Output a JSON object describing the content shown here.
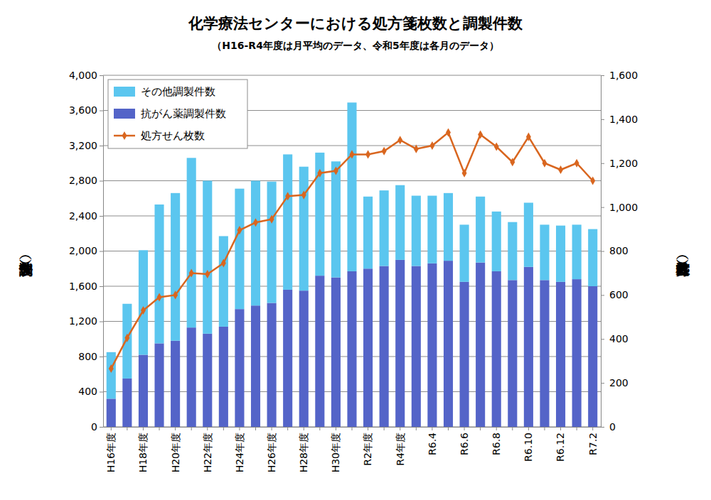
{
  "chart_data": {
    "type": "bar",
    "title": "化学療法センターにおける処方箋枚数と調製件数",
    "subtitle": "（H16-R4年度は月平均のデータ、令和5年度は各月のデータ）",
    "y_label": "調製件数（件）",
    "y2_label": "処方箋枚数（枚）",
    "stacked": true,
    "grid": true,
    "legend": "upper left",
    "categories": [
      "H16年度",
      null,
      "H18年度",
      null,
      "H20年度",
      null,
      "H22年度",
      null,
      "H24年度",
      null,
      "H26年度",
      null,
      "H28年度",
      null,
      "H30年度",
      null,
      "R2年度",
      null,
      "R4年度",
      null,
      "R6.4",
      null,
      "R6.6",
      null,
      "R6.8",
      null,
      "R6.10",
      null,
      "R6.12",
      null,
      "R7.2"
    ],
    "ylim": [
      0,
      4000
    ],
    "yticks": [
      0,
      400,
      800,
      {
        "value": 1200,
        "label": "1,200"
      },
      {
        "value": 1600,
        "label": "1,600"
      },
      {
        "value": 2000,
        "label": "2,000"
      },
      {
        "value": 2400,
        "label": "2,400"
      },
      {
        "value": 2800,
        "label": "2,800"
      },
      {
        "value": 3200,
        "label": "3,200"
      },
      {
        "value": 3600,
        "label": "3,600"
      },
      {
        "value": 4000,
        "label": "4,000"
      }
    ],
    "y2lim": [
      0,
      1600
    ],
    "y2ticks": [
      0,
      200,
      400,
      600,
      800,
      {
        "value": 1000,
        "label": "1,000"
      },
      {
        "value": 1200,
        "label": "1,200"
      },
      {
        "value": 1400,
        "label": "1,400"
      },
      {
        "value": 1600,
        "label": "1,600"
      }
    ],
    "series": [
      {
        "name": "その他調製件数",
        "type": "bar",
        "color": "#5bc6ef",
        "values": [
          530,
          850,
          1190,
          1580,
          1680,
          1930,
          1740,
          1030,
          1370,
          1420,
          1380,
          1540,
          1410,
          1400,
          1320,
          1920,
          820,
          860,
          850,
          800,
          770,
          770,
          650,
          750,
          680,
          660,
          730,
          630,
          640,
          620,
          650
        ]
      },
      {
        "name": "抗がん薬調製件数",
        "type": "bar",
        "color": "#5464c8",
        "values": [
          320,
          550,
          820,
          950,
          980,
          1130,
          1060,
          1140,
          1340,
          1380,
          1410,
          1560,
          1550,
          1720,
          1700,
          1770,
          1800,
          1830,
          1900,
          1830,
          1860,
          1890,
          1650,
          1870,
          1770,
          1670,
          1820,
          1670,
          1650,
          1680,
          1600
        ]
      },
      {
        "name": "処方せん枚数",
        "type": "line",
        "axis": "y2",
        "color": "#d9661f",
        "marker": "diamond",
        "line_style": "solid",
        "values": [
          265,
          405,
          530,
          590,
          600,
          700,
          695,
          745,
          895,
          930,
          945,
          1050,
          1055,
          1155,
          1165,
          1240,
          1240,
          1255,
          1305,
          1265,
          1280,
          1340,
          1155,
          1330,
          1275,
          1205,
          1320,
          1200,
          1170,
          1200,
          1120
        ]
      }
    ]
  }
}
